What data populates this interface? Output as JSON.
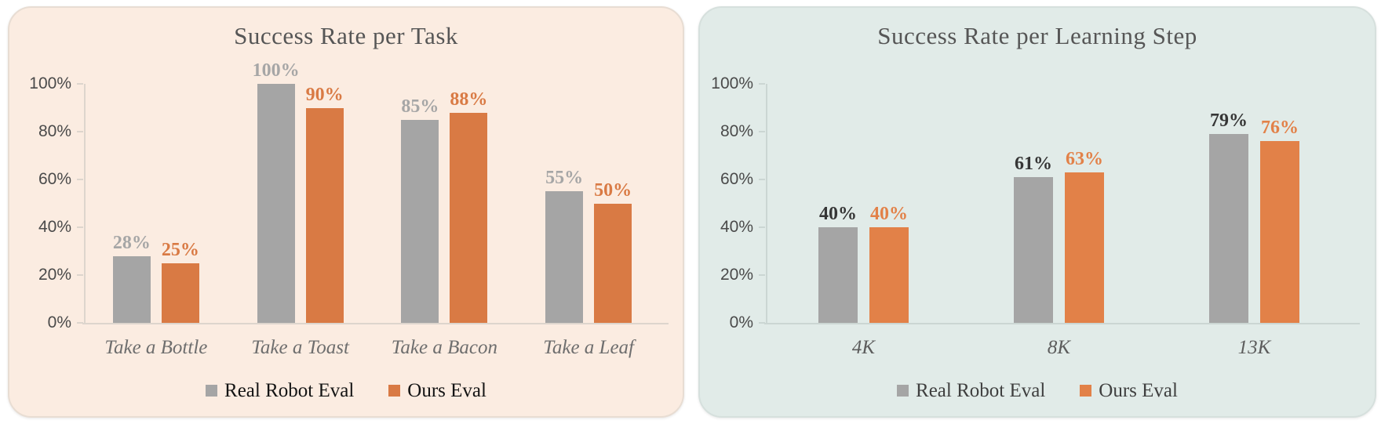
{
  "chart_data": [
    {
      "type": "bar",
      "title": "Success Rate per Task",
      "categories": [
        "Take a Bottle",
        "Take a Toast",
        "Take a Bacon",
        "Take a Leaf"
      ],
      "series": [
        {
          "name": "Real Robot Eval",
          "values": [
            28,
            100,
            85,
            55
          ]
        },
        {
          "name": "Ours Eval",
          "values": [
            25,
            90,
            88,
            50
          ]
        }
      ],
      "value_label_format": "percent",
      "y_ticks": [
        "100%",
        "80%",
        "60%",
        "40%",
        "20%",
        "0%"
      ],
      "ylim": [
        0,
        100
      ],
      "grid": false,
      "legend_position": "bottom",
      "style": {
        "panel_bg": "#fbece1",
        "panel_border": "#e8ddd3",
        "axis_color": "#ddd5cd",
        "series_colors": [
          "#a5a5a5",
          "#d97a44"
        ],
        "value_label_colors": [
          "#a6a6a6",
          "#d97a44"
        ],
        "tick_label_color": "#4a4a4a",
        "x_label_color": "#6e6e6e",
        "title_color": "#565656",
        "legend_text_color": "#141414"
      }
    },
    {
      "type": "bar",
      "title": "Success Rate per Learning Step",
      "categories": [
        "4K",
        "8K",
        "13K"
      ],
      "series": [
        {
          "name": "Real Robot Eval",
          "values": [
            40,
            61,
            79
          ]
        },
        {
          "name": "Ours Eval",
          "values": [
            40,
            63,
            76
          ]
        }
      ],
      "value_label_format": "percent",
      "y_ticks": [
        "100%",
        "80%",
        "60%",
        "40%",
        "20%",
        "0%"
      ],
      "ylim": [
        0,
        100
      ],
      "grid": false,
      "legend_position": "bottom",
      "style": {
        "panel_bg": "#e1ebe8",
        "panel_border": "#d6e0dd",
        "axis_color": "#cbd6d3",
        "series_colors": [
          "#a5a5a5",
          "#e28148"
        ],
        "value_label_colors": [
          "#363636",
          "#e28148"
        ],
        "tick_label_color": "#4a4a4a",
        "x_label_color": "#5c5c5c",
        "title_color": "#565656",
        "legend_text_color": "#3f3f3f"
      }
    }
  ]
}
